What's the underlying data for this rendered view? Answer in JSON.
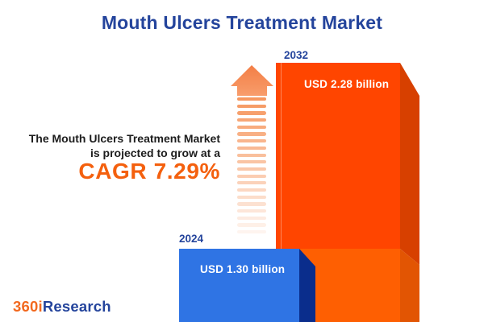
{
  "title": "Mouth Ulcers Treatment Market",
  "message": {
    "line1": "The Mouth Ulcers Treatment Market",
    "line2": "is projected to grow at a",
    "cagr": "CAGR 7.29%"
  },
  "chart_data": {
    "type": "bar",
    "title": "Mouth Ulcers Treatment Market",
    "categories": [
      "2024",
      "2032"
    ],
    "values": [
      1.3,
      2.28
    ],
    "unit": "USD billion",
    "value_labels": [
      "USD 1.30 billion",
      "USD 2.28 billion"
    ],
    "cagr_percent": 7.29,
    "legend": "none",
    "grid": false,
    "colors": {
      "bar_2024_front": "#2F74E4",
      "bar_2024_side": "#0A2D8C",
      "bar_2032_front_upper": "#FF4500",
      "bar_2032_front_lower": "#FE5F02",
      "bar_2032_side_upper": "#D74000",
      "bar_2032_side_lower": "#E25503"
    }
  },
  "bars": {
    "b2024": {
      "year": "2024",
      "label": "USD 1.30 billion"
    },
    "b2032": {
      "year": "2032",
      "label": "USD 2.28 billion"
    }
  },
  "arrow": {
    "dash_count": 20,
    "head_color": "#F5895A",
    "dash_color": "#F6975F"
  },
  "logo": {
    "part1": "360i",
    "part2": "Research"
  },
  "colors": {
    "title_blue": "#24449C",
    "accent_orange": "#F4600E",
    "text_dark": "#1D1D1D"
  }
}
